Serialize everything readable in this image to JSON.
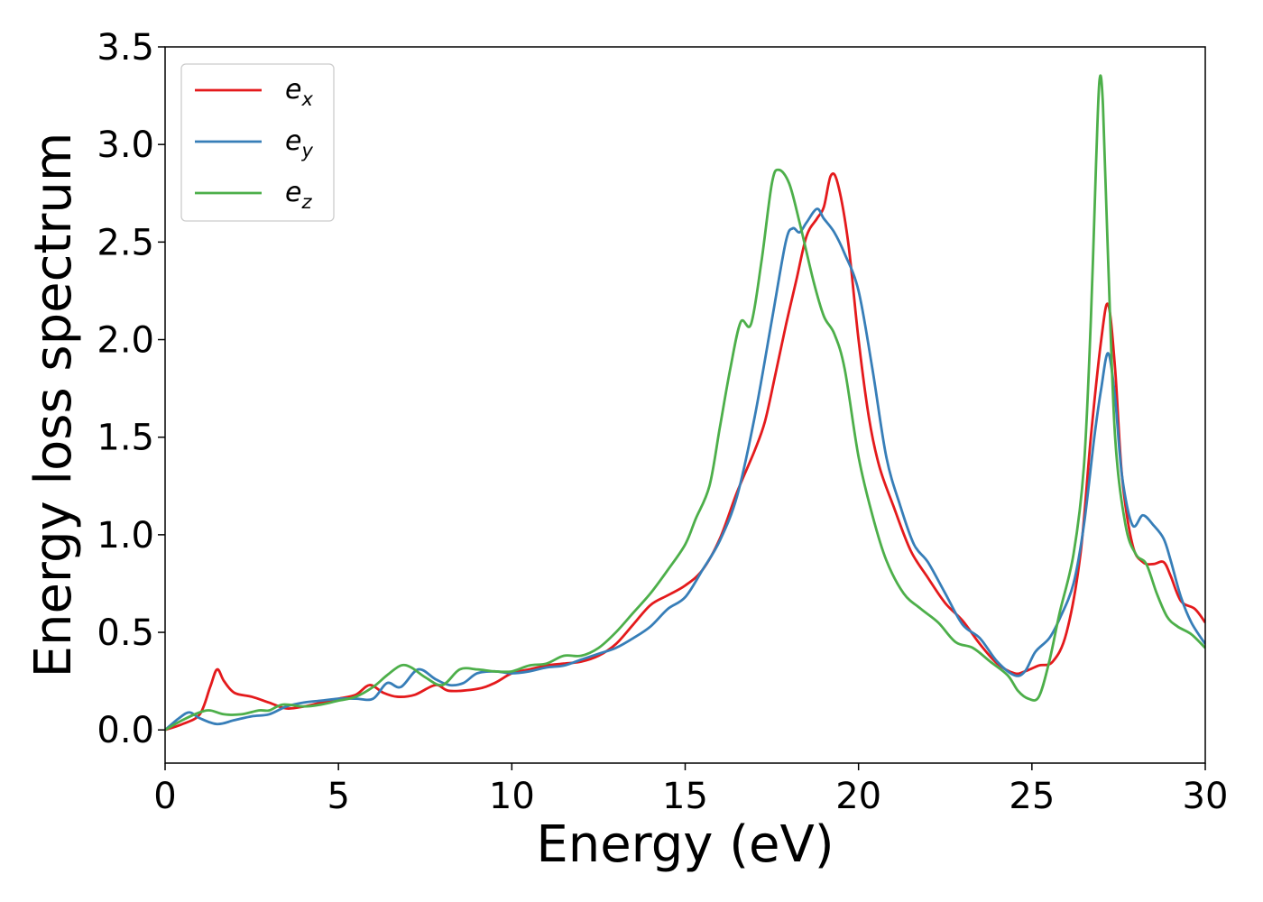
{
  "chart_data": {
    "type": "line",
    "xlabel": "Energy (eV)",
    "ylabel": "Energy loss spectrum",
    "xlim": [
      0,
      30
    ],
    "ylim": [
      -0.17,
      3.5
    ],
    "xticks": [
      0,
      5,
      10,
      15,
      20,
      25,
      30
    ],
    "xtick_labels": [
      "0",
      "5",
      "10",
      "15",
      "20",
      "25",
      "30"
    ],
    "yticks": [
      0.0,
      0.5,
      1.0,
      1.5,
      2.0,
      2.5,
      3.0,
      3.5
    ],
    "ytick_labels": [
      "0.0",
      "0.5",
      "1.0",
      "1.5",
      "2.0",
      "2.5",
      "3.0",
      "3.5"
    ],
    "grid": false,
    "legend_position": "top-left",
    "series": [
      {
        "name": "e_x",
        "label_main": "e",
        "label_sub": "x",
        "color": "#e41a1c",
        "points": [
          [
            0,
            0
          ],
          [
            0.5,
            0.03
          ],
          [
            1.0,
            0.08
          ],
          [
            1.3,
            0.22
          ],
          [
            1.5,
            0.31
          ],
          [
            1.7,
            0.25
          ],
          [
            2.0,
            0.19
          ],
          [
            2.5,
            0.17
          ],
          [
            3.0,
            0.14
          ],
          [
            3.5,
            0.11
          ],
          [
            4.0,
            0.12
          ],
          [
            4.5,
            0.14
          ],
          [
            5.0,
            0.16
          ],
          [
            5.5,
            0.18
          ],
          [
            5.9,
            0.23
          ],
          [
            6.3,
            0.19
          ],
          [
            6.7,
            0.17
          ],
          [
            7.2,
            0.18
          ],
          [
            7.8,
            0.23
          ],
          [
            8.2,
            0.2
          ],
          [
            9.0,
            0.21
          ],
          [
            9.5,
            0.24
          ],
          [
            10.0,
            0.29
          ],
          [
            10.5,
            0.31
          ],
          [
            11.0,
            0.33
          ],
          [
            11.5,
            0.34
          ],
          [
            12.0,
            0.35
          ],
          [
            12.5,
            0.38
          ],
          [
            13.0,
            0.44
          ],
          [
            13.5,
            0.54
          ],
          [
            14.0,
            0.64
          ],
          [
            14.5,
            0.69
          ],
          [
            15.0,
            0.74
          ],
          [
            15.5,
            0.82
          ],
          [
            16.0,
            0.98
          ],
          [
            16.5,
            1.22
          ],
          [
            17.0,
            1.43
          ],
          [
            17.3,
            1.58
          ],
          [
            17.6,
            1.82
          ],
          [
            17.9,
            2.07
          ],
          [
            18.2,
            2.3
          ],
          [
            18.5,
            2.53
          ],
          [
            18.8,
            2.62
          ],
          [
            19.0,
            2.68
          ],
          [
            19.2,
            2.84
          ],
          [
            19.4,
            2.8
          ],
          [
            19.7,
            2.5
          ],
          [
            20.0,
            2.0
          ],
          [
            20.3,
            1.6
          ],
          [
            20.6,
            1.35
          ],
          [
            21.0,
            1.15
          ],
          [
            21.5,
            0.92
          ],
          [
            22.0,
            0.78
          ],
          [
            22.5,
            0.65
          ],
          [
            23.0,
            0.56
          ],
          [
            23.5,
            0.44
          ],
          [
            24.0,
            0.34
          ],
          [
            24.5,
            0.29
          ],
          [
            24.8,
            0.3
          ],
          [
            25.2,
            0.33
          ],
          [
            25.6,
            0.35
          ],
          [
            26.0,
            0.5
          ],
          [
            26.4,
            0.9
          ],
          [
            26.7,
            1.5
          ],
          [
            27.0,
            2.0
          ],
          [
            27.2,
            2.18
          ],
          [
            27.4,
            1.85
          ],
          [
            27.6,
            1.3
          ],
          [
            27.9,
            0.95
          ],
          [
            28.2,
            0.86
          ],
          [
            28.5,
            0.85
          ],
          [
            28.8,
            0.86
          ],
          [
            29.0,
            0.79
          ],
          [
            29.3,
            0.66
          ],
          [
            29.7,
            0.62
          ],
          [
            30.0,
            0.55
          ]
        ]
      },
      {
        "name": "e_y",
        "label_main": "e",
        "label_sub": "y",
        "color": "#377eb8",
        "points": [
          [
            0,
            0
          ],
          [
            0.4,
            0.06
          ],
          [
            0.7,
            0.09
          ],
          [
            1.0,
            0.06
          ],
          [
            1.5,
            0.03
          ],
          [
            2.0,
            0.05
          ],
          [
            2.5,
            0.07
          ],
          [
            3.0,
            0.08
          ],
          [
            3.5,
            0.12
          ],
          [
            4.0,
            0.14
          ],
          [
            4.5,
            0.15
          ],
          [
            5.0,
            0.16
          ],
          [
            5.5,
            0.16
          ],
          [
            6.0,
            0.16
          ],
          [
            6.4,
            0.24
          ],
          [
            6.8,
            0.22
          ],
          [
            7.3,
            0.31
          ],
          [
            7.8,
            0.26
          ],
          [
            8.2,
            0.23
          ],
          [
            8.6,
            0.24
          ],
          [
            9.0,
            0.29
          ],
          [
            9.5,
            0.3
          ],
          [
            10.0,
            0.29
          ],
          [
            10.5,
            0.3
          ],
          [
            11.0,
            0.32
          ],
          [
            11.5,
            0.33
          ],
          [
            12.0,
            0.36
          ],
          [
            12.5,
            0.39
          ],
          [
            13.0,
            0.42
          ],
          [
            13.5,
            0.47
          ],
          [
            14.0,
            0.53
          ],
          [
            14.5,
            0.62
          ],
          [
            15.0,
            0.68
          ],
          [
            15.5,
            0.82
          ],
          [
            16.0,
            0.97
          ],
          [
            16.5,
            1.2
          ],
          [
            17.0,
            1.6
          ],
          [
            17.5,
            2.1
          ],
          [
            17.9,
            2.5
          ],
          [
            18.1,
            2.57
          ],
          [
            18.3,
            2.55
          ],
          [
            18.5,
            2.6
          ],
          [
            18.8,
            2.67
          ],
          [
            19.0,
            2.62
          ],
          [
            19.3,
            2.55
          ],
          [
            19.6,
            2.44
          ],
          [
            20.0,
            2.25
          ],
          [
            20.4,
            1.85
          ],
          [
            20.8,
            1.4
          ],
          [
            21.2,
            1.15
          ],
          [
            21.6,
            0.95
          ],
          [
            22.0,
            0.86
          ],
          [
            22.5,
            0.7
          ],
          [
            23.0,
            0.54
          ],
          [
            23.5,
            0.47
          ],
          [
            24.0,
            0.35
          ],
          [
            24.5,
            0.28
          ],
          [
            24.8,
            0.3
          ],
          [
            25.1,
            0.4
          ],
          [
            25.5,
            0.47
          ],
          [
            25.8,
            0.57
          ],
          [
            26.2,
            0.75
          ],
          [
            26.5,
            1.05
          ],
          [
            26.8,
            1.5
          ],
          [
            27.0,
            1.75
          ],
          [
            27.2,
            1.93
          ],
          [
            27.4,
            1.7
          ],
          [
            27.6,
            1.3
          ],
          [
            27.9,
            1.05
          ],
          [
            28.2,
            1.1
          ],
          [
            28.5,
            1.05
          ],
          [
            28.8,
            0.98
          ],
          [
            29.0,
            0.87
          ],
          [
            29.3,
            0.68
          ],
          [
            29.6,
            0.55
          ],
          [
            30.0,
            0.44
          ]
        ]
      },
      {
        "name": "e_z",
        "label_main": "e",
        "label_sub": "z",
        "color": "#4daf4a",
        "points": [
          [
            0,
            0
          ],
          [
            0.5,
            0.05
          ],
          [
            1.0,
            0.09
          ],
          [
            1.3,
            0.1
          ],
          [
            1.7,
            0.08
          ],
          [
            2.2,
            0.08
          ],
          [
            2.7,
            0.1
          ],
          [
            3.0,
            0.1
          ],
          [
            3.4,
            0.13
          ],
          [
            4.0,
            0.12
          ],
          [
            4.5,
            0.13
          ],
          [
            5.0,
            0.15
          ],
          [
            5.5,
            0.17
          ],
          [
            6.0,
            0.22
          ],
          [
            6.4,
            0.28
          ],
          [
            6.8,
            0.33
          ],
          [
            7.1,
            0.32
          ],
          [
            7.5,
            0.27
          ],
          [
            8.0,
            0.23
          ],
          [
            8.5,
            0.31
          ],
          [
            9.0,
            0.31
          ],
          [
            9.5,
            0.3
          ],
          [
            10.0,
            0.3
          ],
          [
            10.5,
            0.33
          ],
          [
            11.0,
            0.34
          ],
          [
            11.5,
            0.38
          ],
          [
            12.0,
            0.38
          ],
          [
            12.5,
            0.42
          ],
          [
            13.0,
            0.5
          ],
          [
            13.5,
            0.6
          ],
          [
            14.0,
            0.7
          ],
          [
            14.5,
            0.82
          ],
          [
            15.0,
            0.95
          ],
          [
            15.3,
            1.08
          ],
          [
            15.7,
            1.25
          ],
          [
            16.0,
            1.55
          ],
          [
            16.3,
            1.85
          ],
          [
            16.6,
            2.09
          ],
          [
            16.9,
            2.08
          ],
          [
            17.2,
            2.4
          ],
          [
            17.5,
            2.8
          ],
          [
            17.7,
            2.87
          ],
          [
            18.0,
            2.8
          ],
          [
            18.3,
            2.6
          ],
          [
            18.7,
            2.3
          ],
          [
            19.0,
            2.12
          ],
          [
            19.3,
            2.03
          ],
          [
            19.6,
            1.85
          ],
          [
            20.0,
            1.4
          ],
          [
            20.4,
            1.1
          ],
          [
            20.8,
            0.87
          ],
          [
            21.3,
            0.7
          ],
          [
            21.8,
            0.62
          ],
          [
            22.3,
            0.55
          ],
          [
            22.8,
            0.45
          ],
          [
            23.3,
            0.42
          ],
          [
            23.8,
            0.35
          ],
          [
            24.3,
            0.28
          ],
          [
            24.6,
            0.2
          ],
          [
            24.9,
            0.16
          ],
          [
            25.2,
            0.17
          ],
          [
            25.5,
            0.35
          ],
          [
            25.8,
            0.6
          ],
          [
            26.2,
            0.9
          ],
          [
            26.5,
            1.35
          ],
          [
            26.7,
            2.1
          ],
          [
            26.85,
            2.9
          ],
          [
            26.95,
            3.33
          ],
          [
            27.05,
            3.2
          ],
          [
            27.2,
            2.4
          ],
          [
            27.4,
            1.5
          ],
          [
            27.7,
            1.05
          ],
          [
            28.0,
            0.9
          ],
          [
            28.3,
            0.85
          ],
          [
            28.6,
            0.7
          ],
          [
            28.9,
            0.58
          ],
          [
            29.2,
            0.53
          ],
          [
            29.6,
            0.49
          ],
          [
            30.0,
            0.42
          ]
        ]
      }
    ]
  }
}
